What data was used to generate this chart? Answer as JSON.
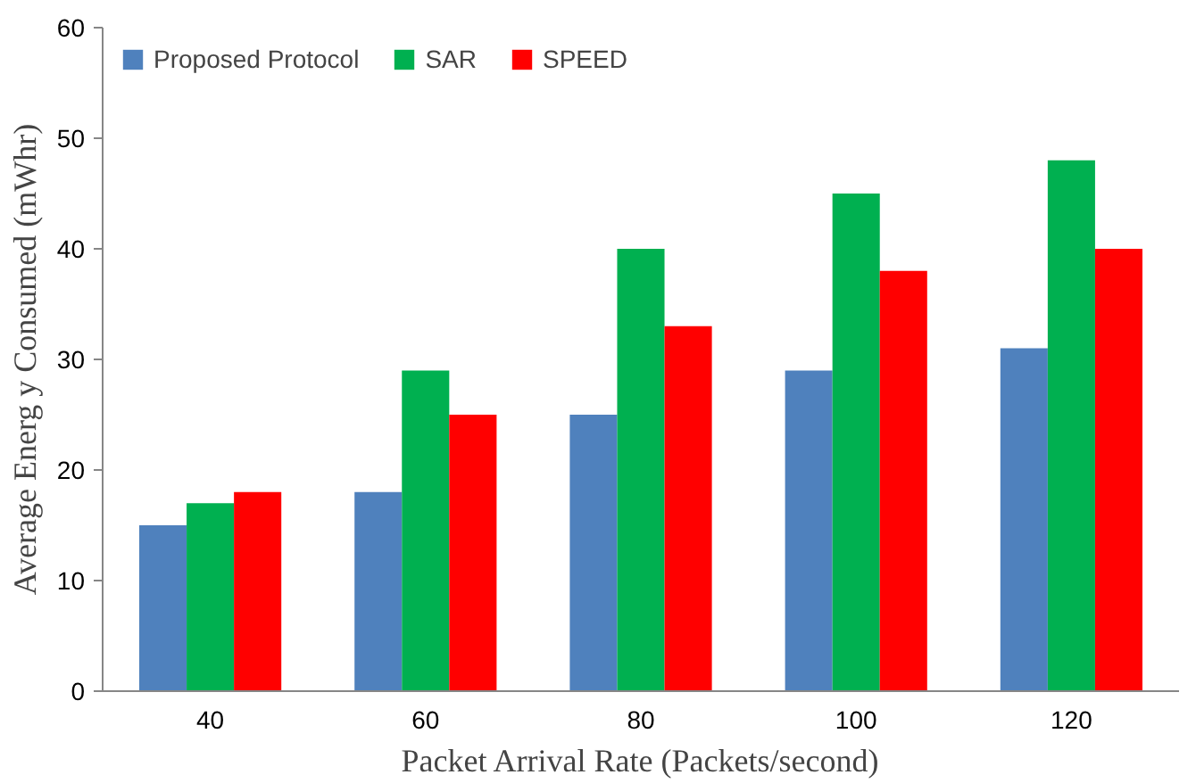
{
  "chart_data": {
    "type": "bar",
    "xlabel": "Packet Arrival Rate (Packets/second)",
    "ylabel": "Average Energ y Consumed (mWhr)",
    "categories": [
      "40",
      "60",
      "80",
      "100",
      "120"
    ],
    "series": [
      {
        "name": "Proposed Protocol",
        "color": "#4f81bd",
        "values": [
          15,
          18,
          25,
          29,
          31
        ]
      },
      {
        "name": "SAR",
        "color": "#00b050",
        "values": [
          17,
          29,
          40,
          45,
          48
        ]
      },
      {
        "name": "SPEED",
        "color": "#ff0000",
        "values": [
          18,
          25,
          33,
          38,
          40
        ]
      }
    ],
    "ylim": [
      0,
      60
    ],
    "yticks": [
      0,
      10,
      20,
      30,
      40,
      50,
      60
    ],
    "grid": false,
    "legend": "top left"
  }
}
